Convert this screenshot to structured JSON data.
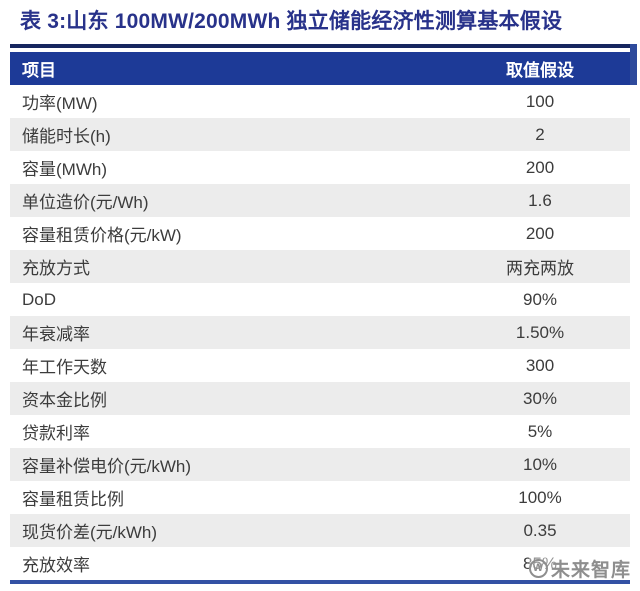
{
  "title": "表 3:山东 100MW/200MWh 独立储能经济性测算基本假设",
  "table": {
    "columns": [
      "项目",
      "取值假设"
    ],
    "rows": [
      {
        "label": "功率(MW)",
        "value": "100"
      },
      {
        "label": "储能时长(h)",
        "value": "2"
      },
      {
        "label": "容量(MWh)",
        "value": "200"
      },
      {
        "label": "单位造价(元/Wh)",
        "value": "1.6"
      },
      {
        "label": "容量租赁价格(元/kW)",
        "value": "200"
      },
      {
        "label": "充放方式",
        "value": "两充两放"
      },
      {
        "label": "DoD",
        "value": "90%"
      },
      {
        "label": "年衰减率",
        "value": "1.50%"
      },
      {
        "label": "年工作天数",
        "value": "300"
      },
      {
        "label": "资本金比例",
        "value": "30%"
      },
      {
        "label": "贷款利率",
        "value": "5%"
      },
      {
        "label": "容量补偿电价(元/kWh)",
        "value": "10%"
      },
      {
        "label": "容量租赁比例",
        "value": "100%"
      },
      {
        "label": "现货价差(元/kWh)",
        "value": "0.35"
      },
      {
        "label": "充放效率",
        "value": "85%"
      }
    ]
  },
  "watermark": {
    "logo_glyph": "W",
    "text": "未来智库"
  },
  "colors": {
    "title": "#28328A",
    "top_rule": "#16265F",
    "header_bg": "#1D3A97",
    "header_right_accent": "#2E4A9C",
    "header_text": "#FFFFFF",
    "row_alt": "#ECECEC",
    "body_text": "#3C3C3C",
    "bottom_rule": "#3351A4",
    "watermark": "#8E8E8E"
  }
}
